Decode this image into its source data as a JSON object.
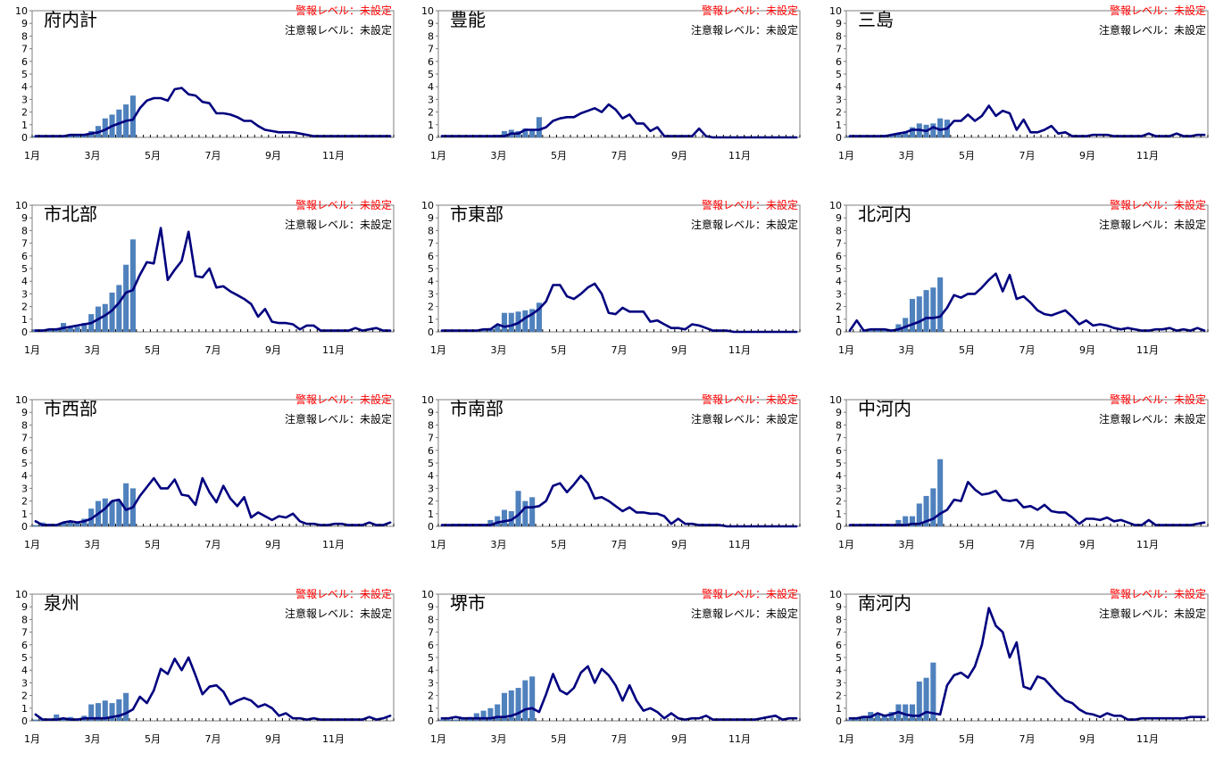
{
  "colors": {
    "bar": "#4f81bd",
    "line": "#00007f",
    "warn_text": "#ff0000"
  },
  "labels": {
    "warning": "警報レベル：未設定",
    "caution": "注意報レベル：未設定"
  },
  "chart_data": [
    {
      "type": "bar+line",
      "region": "府内計",
      "ylim": [
        0,
        10
      ],
      "yticks": [
        0,
        1,
        2,
        3,
        4,
        5,
        6,
        7,
        8,
        9,
        10
      ],
      "xticks": [
        "1月",
        "3月",
        "5月",
        "7月",
        "9月",
        "11月"
      ],
      "weeks": 52,
      "bars": [
        0.1,
        0.1,
        0.1,
        0.1,
        0.1,
        0.2,
        0.2,
        0.2,
        0.5,
        0.9,
        1.5,
        1.8,
        2.2,
        2.6,
        3.3
      ],
      "line": [
        0.1,
        0.1,
        0.1,
        0.1,
        0.1,
        0.2,
        0.2,
        0.2,
        0.3,
        0.4,
        0.6,
        0.9,
        1.1,
        1.3,
        1.4,
        2.3,
        2.9,
        3.1,
        3.1,
        2.9,
        3.8,
        3.9,
        3.4,
        3.3,
        2.8,
        2.7,
        1.9,
        1.9,
        1.8,
        1.6,
        1.3,
        1.3,
        0.9,
        0.6,
        0.5,
        0.4,
        0.4,
        0.4,
        0.3,
        0.2,
        0.1,
        0.1,
        0.1,
        0.1,
        0.1,
        0.1,
        0.1,
        0.1,
        0.1,
        0.1,
        0.1,
        0.1
      ]
    },
    {
      "type": "bar+line",
      "region": "豊能",
      "ylim": [
        0,
        10
      ],
      "yticks": [
        0,
        1,
        2,
        3,
        4,
        5,
        6,
        7,
        8,
        9,
        10
      ],
      "xticks": [
        "1月",
        "3月",
        "5月",
        "7月",
        "9月",
        "11月"
      ],
      "weeks": 52,
      "bars": [
        0,
        0,
        0,
        0,
        0,
        0.1,
        0.1,
        0.1,
        0.2,
        0.5,
        0.6,
        0.5,
        0.7,
        0.6,
        1.6
      ],
      "line": [
        0.1,
        0.1,
        0.1,
        0.1,
        0.1,
        0.1,
        0.1,
        0.1,
        0.1,
        0.1,
        0.3,
        0.3,
        0.6,
        0.6,
        0.6,
        0.8,
        1.3,
        1.5,
        1.6,
        1.6,
        1.9,
        2.1,
        2.3,
        2.0,
        2.6,
        2.2,
        1.5,
        1.8,
        1.1,
        1.1,
        0.5,
        0.8,
        0.1,
        0.1,
        0.1,
        0.1,
        0.1,
        0.7,
        0.1,
        0,
        0,
        0,
        0,
        0,
        0,
        0,
        0,
        0,
        0,
        0,
        0,
        0
      ]
    },
    {
      "type": "bar+line",
      "region": "三島",
      "ylim": [
        0,
        10
      ],
      "yticks": [
        0,
        1,
        2,
        3,
        4,
        5,
        6,
        7,
        8,
        9,
        10
      ],
      "xticks": [
        "1月",
        "3月",
        "5月",
        "7月",
        "9月",
        "11月"
      ],
      "weeks": 52,
      "bars": [
        0.1,
        0.1,
        0.1,
        0.1,
        0.1,
        0.2,
        0.2,
        0.3,
        0.4,
        0.8,
        1.1,
        1.0,
        1.1,
        1.5,
        1.4
      ],
      "line": [
        0.1,
        0.1,
        0.1,
        0.1,
        0.1,
        0.1,
        0.2,
        0.3,
        0.4,
        0.6,
        0.6,
        0.5,
        0.8,
        0.6,
        0.7,
        1.3,
        1.3,
        1.8,
        1.3,
        1.7,
        2.5,
        1.7,
        2.1,
        1.9,
        0.6,
        1.4,
        0.4,
        0.4,
        0.6,
        0.9,
        0.3,
        0.4,
        0.1,
        0.1,
        0.1,
        0.2,
        0.2,
        0.2,
        0.1,
        0.1,
        0.1,
        0.1,
        0.1,
        0.3,
        0.1,
        0.1,
        0.1,
        0.3,
        0.1,
        0.1,
        0.2,
        0.2
      ]
    },
    {
      "type": "bar+line",
      "region": "市北部",
      "ylim": [
        0,
        10
      ],
      "yticks": [
        0,
        1,
        2,
        3,
        4,
        5,
        6,
        7,
        8,
        9,
        10
      ],
      "xticks": [
        "1月",
        "3月",
        "5月",
        "7月",
        "9月",
        "11月"
      ],
      "weeks": 52,
      "bars": [
        0.2,
        0.2,
        0.2,
        0.2,
        0.7,
        0.4,
        0.4,
        0.7,
        1.4,
        2.0,
        2.2,
        3.1,
        3.7,
        5.3,
        7.3
      ],
      "line": [
        0.1,
        0.1,
        0.2,
        0.2,
        0.3,
        0.4,
        0.5,
        0.6,
        0.7,
        1.0,
        1.3,
        1.7,
        2.3,
        3.1,
        3.3,
        4.5,
        5.5,
        5.4,
        8.2,
        4.1,
        4.9,
        5.6,
        7.9,
        4.4,
        4.3,
        5.0,
        3.5,
        3.6,
        3.2,
        2.9,
        2.6,
        2.2,
        1.2,
        1.8,
        0.8,
        0.7,
        0.7,
        0.6,
        0.2,
        0.5,
        0.5,
        0.1,
        0.1,
        0.1,
        0.1,
        0.1,
        0.3,
        0.1,
        0.2,
        0.3,
        0.1,
        0.1
      ]
    },
    {
      "type": "bar+line",
      "region": "市東部",
      "ylim": [
        0,
        10
      ],
      "yticks": [
        0,
        1,
        2,
        3,
        4,
        5,
        6,
        7,
        8,
        9,
        10
      ],
      "xticks": [
        "1月",
        "3月",
        "5月",
        "7月",
        "9月",
        "11月"
      ],
      "weeks": 52,
      "bars": [
        0,
        0,
        0,
        0,
        0,
        0,
        0.1,
        0.3,
        0.5,
        1.5,
        1.5,
        1.6,
        1.7,
        1.8,
        2.3
      ],
      "line": [
        0.1,
        0.1,
        0.1,
        0.1,
        0.1,
        0.1,
        0.2,
        0.2,
        0.6,
        0.4,
        0.5,
        0.7,
        1.1,
        1.4,
        1.8,
        2.4,
        3.7,
        3.7,
        2.8,
        2.6,
        3.0,
        3.5,
        3.8,
        3.0,
        1.5,
        1.4,
        1.9,
        1.6,
        1.6,
        1.6,
        0.8,
        0.9,
        0.6,
        0.3,
        0.3,
        0.2,
        0.6,
        0.5,
        0.3,
        0.1,
        0.1,
        0.1,
        0,
        0,
        0,
        0,
        0,
        0,
        0,
        0,
        0,
        0
      ]
    },
    {
      "type": "bar+line",
      "region": "北河内",
      "ylim": [
        0,
        10
      ],
      "yticks": [
        0,
        1,
        2,
        3,
        4,
        5,
        6,
        7,
        8,
        9,
        10
      ],
      "xticks": [
        "1月",
        "3月",
        "5月",
        "7月",
        "9月",
        "11月"
      ],
      "weeks": 52,
      "bars": [
        0,
        0,
        0.1,
        0.1,
        0.1,
        0.1,
        0.2,
        0.6,
        1.1,
        2.6,
        2.8,
        3.3,
        3.5,
        4.3,
        0
      ],
      "line": [
        0.1,
        0.9,
        0.1,
        0.2,
        0.2,
        0.2,
        0.1,
        0.2,
        0.4,
        0.6,
        0.8,
        1.1,
        1.1,
        1.2,
        1.9,
        2.9,
        2.7,
        3.0,
        3.0,
        3.5,
        4.1,
        4.6,
        3.2,
        4.5,
        2.6,
        2.8,
        2.3,
        1.7,
        1.4,
        1.3,
        1.5,
        1.7,
        1.2,
        0.6,
        0.9,
        0.5,
        0.6,
        0.5,
        0.3,
        0.2,
        0.3,
        0.2,
        0.1,
        0.1,
        0.2,
        0.2,
        0.3,
        0.1,
        0.2,
        0.1,
        0.3,
        0.1
      ]
    },
    {
      "type": "bar+line",
      "region": "市西部",
      "ylim": [
        0,
        10
      ],
      "yticks": [
        0,
        1,
        2,
        3,
        4,
        5,
        6,
        7,
        8,
        9,
        10
      ],
      "xticks": [
        "1月",
        "3月",
        "5月",
        "7月",
        "9月",
        "11月"
      ],
      "weeks": 52,
      "bars": [
        0.1,
        0.3,
        0.2,
        0.1,
        0.3,
        0.4,
        0.3,
        0.6,
        1.4,
        2.0,
        2.2,
        2.0,
        2.0,
        3.4,
        3.0
      ],
      "line": [
        0.4,
        0.1,
        0.1,
        0.1,
        0.3,
        0.4,
        0.3,
        0.4,
        0.6,
        1.0,
        1.4,
        2.0,
        2.1,
        1.3,
        1.5,
        2.4,
        3.1,
        3.8,
        3.0,
        3.0,
        3.7,
        2.5,
        2.4,
        1.7,
        3.8,
        2.7,
        1.9,
        3.2,
        2.2,
        1.6,
        2.3,
        0.7,
        1.1,
        0.8,
        0.5,
        0.8,
        0.7,
        1.0,
        0.4,
        0.2,
        0.2,
        0.1,
        0.1,
        0.2,
        0.2,
        0.1,
        0.1,
        0.1,
        0.3,
        0.1,
        0.1,
        0.3
      ]
    },
    {
      "type": "bar+line",
      "region": "市南部",
      "ylim": [
        0,
        10
      ],
      "yticks": [
        0,
        1,
        2,
        3,
        4,
        5,
        6,
        7,
        8,
        9,
        10
      ],
      "xticks": [
        "1月",
        "3月",
        "5月",
        "7月",
        "9月",
        "11月"
      ],
      "weeks": 52,
      "bars": [
        0,
        0.1,
        0.2,
        0.2,
        0.2,
        0.2,
        0.2,
        0.5,
        0.8,
        1.3,
        1.2,
        2.8,
        2.0,
        2.3,
        0
      ],
      "line": [
        0.1,
        0.1,
        0.1,
        0.1,
        0.1,
        0.1,
        0.1,
        0.1,
        0.3,
        0.4,
        0.5,
        0.9,
        1.5,
        1.5,
        1.6,
        2.0,
        3.2,
        3.4,
        2.7,
        3.3,
        4.0,
        3.4,
        2.2,
        2.3,
        2.0,
        1.6,
        1.2,
        1.5,
        1.1,
        1.1,
        1.0,
        1.0,
        0.8,
        0.2,
        0.6,
        0.2,
        0.2,
        0.1,
        0.1,
        0.1,
        0.1,
        0,
        0,
        0,
        0,
        0,
        0,
        0,
        0,
        0,
        0,
        0
      ]
    },
    {
      "type": "bar+line",
      "region": "中河内",
      "ylim": [
        0,
        10
      ],
      "yticks": [
        0,
        1,
        2,
        3,
        4,
        5,
        6,
        7,
        8,
        9,
        10
      ],
      "xticks": [
        "1月",
        "3月",
        "5月",
        "7月",
        "9月",
        "11月"
      ],
      "weeks": 52,
      "bars": [
        0,
        0,
        0.1,
        0.2,
        0.1,
        0.2,
        0.1,
        0.5,
        0.8,
        0.8,
        1.8,
        2.4,
        3.0,
        5.3,
        0
      ],
      "line": [
        0.1,
        0.1,
        0.1,
        0.1,
        0.1,
        0.1,
        0.1,
        0.1,
        0.1,
        0.2,
        0.2,
        0.4,
        0.6,
        1.0,
        1.3,
        2.1,
        2.0,
        3.5,
        2.9,
        2.5,
        2.6,
        2.8,
        2.1,
        2.0,
        2.1,
        1.5,
        1.6,
        1.3,
        1.7,
        1.2,
        1.1,
        1.1,
        0.7,
        0.2,
        0.6,
        0.6,
        0.5,
        0.7,
        0.4,
        0.5,
        0.3,
        0.1,
        0.1,
        0.5,
        0.1,
        0.1,
        0.1,
        0.1,
        0.1,
        0.1,
        0.2,
        0.3
      ]
    },
    {
      "type": "bar+line",
      "region": "泉州",
      "ylim": [
        0,
        10
      ],
      "yticks": [
        0,
        1,
        2,
        3,
        4,
        5,
        6,
        7,
        8,
        9,
        10
      ],
      "xticks": [
        "1月",
        "3月",
        "5月",
        "7月",
        "9月",
        "11月"
      ],
      "weeks": 52,
      "bars": [
        0.1,
        0.2,
        0.1,
        0.5,
        0.2,
        0.3,
        0.2,
        0.4,
        1.3,
        1.4,
        1.6,
        1.4,
        1.7,
        2.2,
        0
      ],
      "line": [
        0.5,
        0.1,
        0.1,
        0.1,
        0.2,
        0.1,
        0.1,
        0.2,
        0.2,
        0.2,
        0.2,
        0.3,
        0.4,
        0.6,
        0.9,
        1.9,
        1.4,
        2.4,
        4.1,
        3.7,
        4.9,
        4.0,
        5.0,
        3.6,
        2.1,
        2.7,
        2.8,
        2.3,
        1.3,
        1.6,
        1.8,
        1.6,
        1.1,
        1.3,
        1.0,
        0.4,
        0.6,
        0.2,
        0.2,
        0.1,
        0.2,
        0.1,
        0.1,
        0.1,
        0.1,
        0.1,
        0.1,
        0.1,
        0.3,
        0.1,
        0.2,
        0.4
      ]
    },
    {
      "type": "bar+line",
      "region": "堺市",
      "ylim": [
        0,
        10
      ],
      "yticks": [
        0,
        1,
        2,
        3,
        4,
        5,
        6,
        7,
        8,
        9,
        10
      ],
      "xticks": [
        "1月",
        "3月",
        "5月",
        "7月",
        "9月",
        "11月"
      ],
      "weeks": 52,
      "bars": [
        0.1,
        0.1,
        0.1,
        0.2,
        0.3,
        0.6,
        0.8,
        1.0,
        1.3,
        2.2,
        2.4,
        2.6,
        3.2,
        3.5,
        0
      ],
      "line": [
        0.2,
        0.2,
        0.3,
        0.2,
        0.2,
        0.2,
        0.2,
        0.2,
        0.3,
        0.3,
        0.4,
        0.6,
        0.9,
        1.0,
        0.7,
        2.1,
        3.7,
        2.4,
        2.1,
        2.6,
        3.8,
        4.3,
        3.0,
        4.1,
        3.6,
        2.8,
        1.6,
        2.8,
        1.6,
        0.8,
        1.0,
        0.7,
        0.2,
        0.6,
        0.2,
        0.1,
        0.2,
        0.2,
        0.4,
        0.1,
        0.1,
        0.1,
        0.1,
        0.1,
        0.1,
        0.1,
        0.2,
        0.3,
        0.4,
        0.1,
        0.2,
        0.2
      ]
    },
    {
      "type": "bar+line",
      "region": "南河内",
      "ylim": [
        0,
        10
      ],
      "yticks": [
        0,
        1,
        2,
        3,
        4,
        5,
        6,
        7,
        8,
        9,
        10
      ],
      "xticks": [
        "1月",
        "3月",
        "5月",
        "7月",
        "9月",
        "11月"
      ],
      "weeks": 52,
      "bars": [
        0.1,
        0.2,
        0.4,
        0.7,
        0.5,
        0.4,
        0.7,
        1.3,
        1.3,
        1.3,
        3.1,
        3.4,
        4.6,
        0,
        0
      ],
      "line": [
        0.2,
        0.2,
        0.3,
        0.3,
        0.6,
        0.4,
        0.5,
        0.7,
        0.5,
        0.4,
        0.4,
        0.7,
        0.6,
        0.5,
        2.8,
        3.6,
        3.8,
        3.4,
        4.3,
        6.0,
        8.9,
        7.5,
        7.0,
        5.0,
        6.2,
        2.7,
        2.5,
        3.5,
        3.3,
        2.7,
        2.1,
        1.6,
        1.4,
        0.9,
        0.6,
        0.5,
        0.3,
        0.6,
        0.4,
        0.4,
        0.1,
        0.1,
        0.2,
        0.2,
        0.2,
        0.2,
        0.2,
        0.2,
        0.2,
        0.3,
        0.3,
        0.3
      ]
    }
  ]
}
